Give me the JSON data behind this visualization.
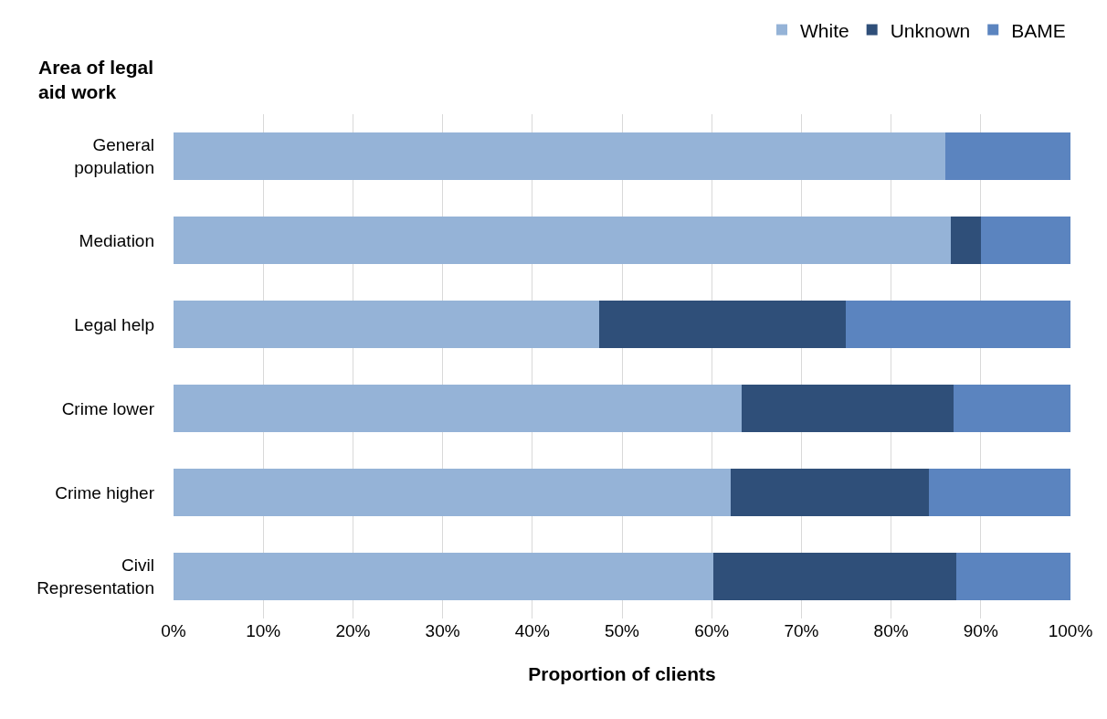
{
  "chart_data": {
    "type": "bar",
    "orientation": "horizontal",
    "stacked": true,
    "ylabel": "Area of legal aid work",
    "xlabel": "Proportion of clients",
    "categories": [
      "General population",
      "Mediation",
      "Legal help",
      "Crime lower",
      "Crime higher",
      "Civil Representation"
    ],
    "series": [
      {
        "name": "White",
        "color": "#95b3d7",
        "values": [
          86.0,
          86.7,
          47.5,
          63.3,
          62.1,
          60.2
        ]
      },
      {
        "name": "Unknown",
        "color": "#2f4f79",
        "values": [
          0,
          3.3,
          27.4,
          23.7,
          22.1,
          27.1
        ]
      },
      {
        "name": "BAME",
        "color": "#5b84bf",
        "values": [
          14.0,
          10.0,
          25.1,
          13.0,
          15.8,
          12.7
        ]
      }
    ],
    "xlim": [
      0,
      100
    ],
    "xticks": [
      {
        "value": 0,
        "label": "0%"
      },
      {
        "value": 10,
        "label": "10%"
      },
      {
        "value": 20,
        "label": "20%"
      },
      {
        "value": 30,
        "label": "30%"
      },
      {
        "value": 40,
        "label": "40%"
      },
      {
        "value": 50,
        "label": "50%"
      },
      {
        "value": 60,
        "label": "60%"
      },
      {
        "value": 70,
        "label": "70%"
      },
      {
        "value": 80,
        "label": "80%"
      },
      {
        "value": 90,
        "label": "90%"
      },
      {
        "value": 100,
        "label": "100%"
      }
    ],
    "grid": "x",
    "legend": "top right"
  }
}
